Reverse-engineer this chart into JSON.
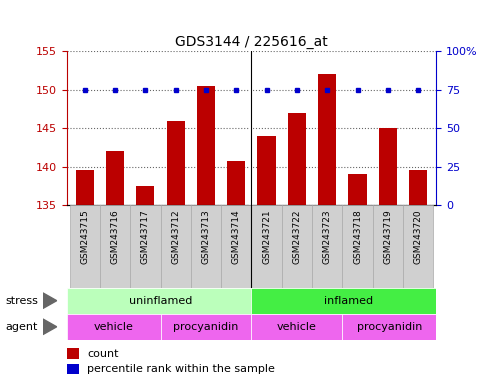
{
  "title": "GDS3144 / 225616_at",
  "samples": [
    "GSM243715",
    "GSM243716",
    "GSM243717",
    "GSM243712",
    "GSM243713",
    "GSM243714",
    "GSM243721",
    "GSM243722",
    "GSM243723",
    "GSM243718",
    "GSM243719",
    "GSM243720"
  ],
  "counts": [
    139.5,
    142.0,
    137.5,
    146.0,
    150.5,
    140.8,
    144.0,
    147.0,
    152.0,
    139.0,
    145.0,
    139.5
  ],
  "percentiles": [
    75,
    75,
    75,
    75,
    75,
    75,
    75,
    75,
    75,
    75,
    75,
    75
  ],
  "bar_color": "#bb0000",
  "dot_color": "#0000cc",
  "ylim_left": [
    135,
    155
  ],
  "ylim_right": [
    0,
    100
  ],
  "yticks_left": [
    135,
    140,
    145,
    150,
    155
  ],
  "yticks_right": [
    0,
    25,
    50,
    75,
    100
  ],
  "stress_colors": [
    "#bbffbb",
    "#44ee44"
  ],
  "agent_color": "#ee66ee",
  "background_color": "#ffffff",
  "grid_color": "#000000"
}
